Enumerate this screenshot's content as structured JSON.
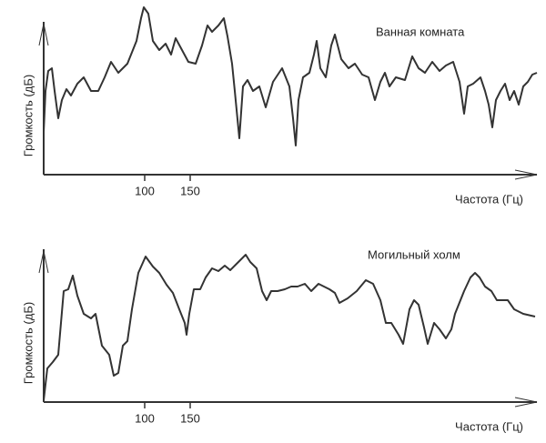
{
  "chart_data": [
    {
      "type": "line",
      "title": "Ванная комната",
      "x_label": "Частота (Гц)",
      "y_label": "Громкость (дБ)",
      "color": "#333333",
      "xlim": [
        -11,
        531
      ],
      "xticks": [
        100,
        150
      ],
      "ylim": [
        0,
        190
      ],
      "x": [
        -11,
        -9,
        -6,
        -2,
        1,
        5,
        9,
        14,
        19,
        26,
        33,
        41,
        49,
        56,
        63,
        71,
        81,
        91,
        96,
        99,
        104,
        109,
        116,
        123,
        129,
        134,
        141,
        148,
        156,
        163,
        169,
        174,
        181,
        187,
        191,
        196,
        199,
        204,
        208,
        213,
        219,
        226,
        233,
        241,
        251,
        259,
        263,
        266,
        269,
        274,
        281,
        286,
        289,
        293,
        299,
        305,
        309,
        316,
        324,
        331,
        339,
        346,
        353,
        359,
        364,
        369,
        376,
        386,
        394,
        401,
        408,
        416,
        424,
        431,
        439,
        446,
        451,
        455,
        461,
        469,
        474,
        478,
        482,
        486,
        491,
        496,
        501,
        506,
        511,
        516,
        521,
        526,
        531
      ],
      "values": [
        47,
        92,
        114,
        117,
        92,
        62,
        82,
        94,
        87,
        100,
        107,
        92,
        92,
        107,
        124,
        112,
        122,
        147,
        172,
        184,
        177,
        147,
        137,
        144,
        132,
        150,
        137,
        124,
        122,
        142,
        164,
        157,
        164,
        172,
        152,
        122,
        92,
        40,
        97,
        104,
        92,
        97,
        74,
        102,
        117,
        97,
        62,
        32,
        82,
        107,
        112,
        132,
        147,
        117,
        107,
        142,
        154,
        127,
        117,
        122,
        110,
        107,
        82,
        102,
        112,
        97,
        107,
        104,
        130,
        117,
        112,
        124,
        114,
        120,
        124,
        102,
        67,
        97,
        100,
        107,
        92,
        77,
        52,
        82,
        92,
        100,
        82,
        92,
        77,
        97,
        102,
        110,
        112
      ]
    },
    {
      "type": "line",
      "title": "Могильный холм",
      "x_label": "Частота (Гц)",
      "y_label": "Громкость (дБ)",
      "color": "#333333",
      "xlim": [
        -11,
        531
      ],
      "xticks": [
        100,
        150
      ],
      "ylim": [
        0,
        190
      ],
      "x": [
        -11,
        -7,
        -1,
        5,
        11,
        16,
        21,
        26,
        33,
        41,
        46,
        53,
        61,
        66,
        71,
        76,
        81,
        86,
        93,
        101,
        109,
        116,
        124,
        131,
        138,
        144,
        146,
        149,
        154,
        161,
        167,
        174,
        181,
        188,
        194,
        201,
        206,
        211,
        216,
        223,
        229,
        234,
        239,
        246,
        254,
        261,
        268,
        276,
        283,
        291,
        297,
        303,
        309,
        314,
        323,
        333,
        343,
        351,
        359,
        365,
        371,
        379,
        384,
        391,
        396,
        401,
        407,
        411,
        418,
        424,
        431,
        437,
        441,
        451,
        458,
        463,
        468,
        474,
        481,
        487,
        493,
        499,
        506,
        516,
        529
      ],
      "values": [
        2,
        37,
        44,
        52,
        122,
        124,
        139,
        117,
        97,
        92,
        97,
        62,
        52,
        29,
        32,
        62,
        67,
        102,
        142,
        160,
        149,
        142,
        129,
        120,
        102,
        87,
        74,
        97,
        124,
        124,
        137,
        147,
        144,
        150,
        145,
        152,
        157,
        162,
        154,
        147,
        122,
        112,
        122,
        122,
        124,
        127,
        127,
        130,
        122,
        130,
        127,
        124,
        120,
        109,
        114,
        122,
        134,
        130,
        112,
        87,
        87,
        74,
        64,
        102,
        112,
        107,
        82,
        64,
        87,
        80,
        70,
        80,
        97,
        122,
        137,
        142,
        137,
        127,
        122,
        112,
        112,
        112,
        102,
        97,
        94
      ]
    }
  ]
}
